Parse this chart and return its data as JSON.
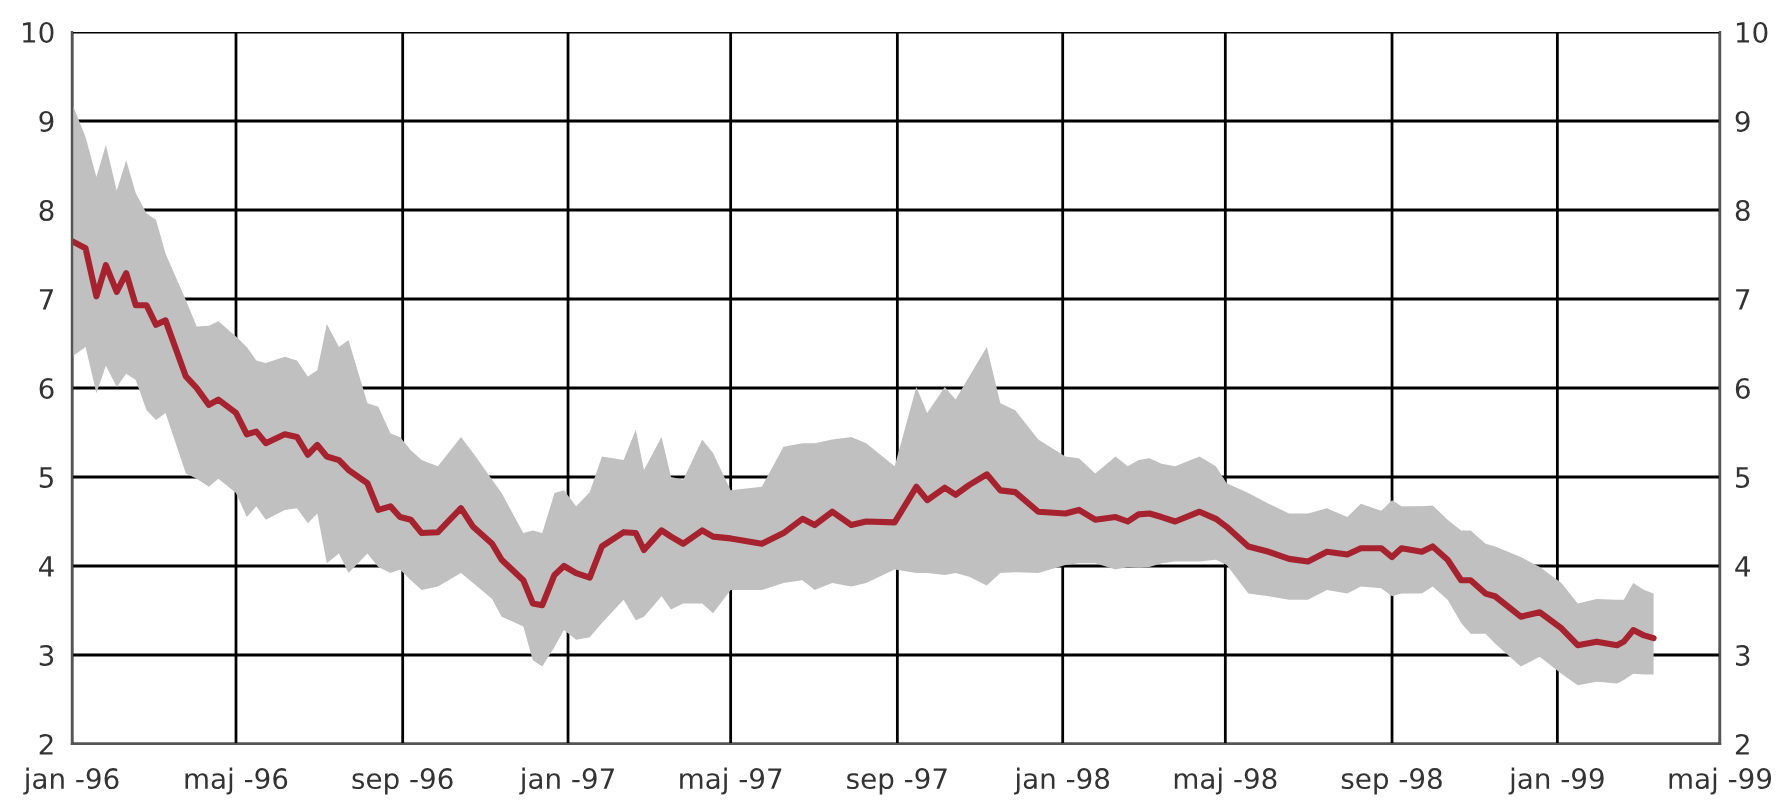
{
  "chart_data": {
    "type": "line",
    "x": [
      "1996-01-01",
      "1996-01-11",
      "1996-01-19",
      "1996-01-26",
      "1996-02-03",
      "1996-02-10",
      "1996-02-17",
      "1996-02-25",
      "1996-03-03",
      "1996-03-10",
      "1996-03-25",
      "1996-04-02",
      "1996-04-11",
      "1996-04-18",
      "1996-05-01",
      "1996-05-09",
      "1996-05-16",
      "1996-05-23",
      "1996-06-06",
      "1996-06-15",
      "1996-06-23",
      "1996-06-30",
      "1996-07-07",
      "1996-07-16",
      "1996-07-23",
      "1996-08-06",
      "1996-08-14",
      "1996-08-23",
      "1996-08-30",
      "1996-09-07",
      "1996-09-15",
      "1996-09-27",
      "1996-10-14",
      "1996-10-23",
      "1996-11-06",
      "1996-11-13",
      "1996-11-29",
      "1996-12-06",
      "1996-12-13",
      "1996-12-22",
      "1996-12-29",
      "1997-01-07",
      "1997-01-17",
      "1997-01-26",
      "1997-02-11",
      "1997-02-20",
      "1997-02-26",
      "1997-03-11",
      "1997-03-18",
      "1997-03-27",
      "1997-04-10",
      "1997-04-18",
      "1997-05-01",
      "1997-05-24",
      "1997-06-09",
      "1997-06-23",
      "1997-07-02",
      "1997-07-15",
      "1997-07-29",
      "1997-08-09",
      "1997-08-30",
      "1997-09-15",
      "1997-09-23",
      "1997-10-06",
      "1997-10-14",
      "1997-10-24",
      "1997-11-06",
      "1997-11-16",
      "1997-11-27",
      "1997-12-14",
      "1998-01-03",
      "1998-01-13",
      "1998-01-25",
      "1998-02-09",
      "1998-02-18",
      "1998-02-26",
      "1998-03-06",
      "1998-03-15",
      "1998-03-25",
      "1998-04-12",
      "1998-04-24",
      "1998-05-02",
      "1998-05-18",
      "1998-06-02",
      "1998-06-17",
      "1998-07-01",
      "1998-07-15",
      "1998-07-30",
      "1998-08-09",
      "1998-08-24",
      "1998-09-01",
      "1998-09-08",
      "1998-09-23",
      "1998-10-01",
      "1998-10-12",
      "1998-10-22",
      "1998-10-29",
      "1998-11-09",
      "1998-11-16",
      "1998-12-05",
      "1998-12-19",
      "1999-01-04",
      "1999-01-16",
      "1999-01-30",
      "1999-02-14",
      "1999-02-19",
      "1999-02-26",
      "1999-03-06",
      "1999-03-13"
    ],
    "series": [
      {
        "color": "#a6222e",
        "values": [
          7.65,
          7.57,
          7.03,
          7.38,
          7.08,
          7.29,
          6.93,
          6.93,
          6.71,
          6.76,
          6.13,
          6.0,
          5.81,
          5.87,
          5.72,
          5.48,
          5.51,
          5.38,
          5.48,
          5.45,
          5.25,
          5.36,
          5.23,
          5.19,
          5.08,
          4.93,
          4.63,
          4.67,
          4.55,
          4.52,
          4.37,
          4.38,
          4.65,
          4.44,
          4.25,
          4.07,
          3.84,
          3.58,
          3.56,
          3.9,
          4.0,
          3.92,
          3.87,
          4.22,
          4.38,
          4.37,
          4.18,
          4.4,
          4.33,
          4.25,
          4.4,
          4.33,
          4.31,
          4.25,
          4.37,
          4.53,
          4.46,
          4.61,
          4.46,
          4.5,
          4.49,
          4.89,
          4.74,
          4.88,
          4.8,
          4.91,
          5.03,
          4.85,
          4.83,
          4.61,
          4.59,
          4.63,
          4.52,
          4.55,
          4.5,
          4.58,
          4.59,
          4.55,
          4.5,
          4.61,
          4.53,
          4.44,
          4.22,
          4.16,
          4.08,
          4.05,
          4.16,
          4.13,
          4.2,
          4.2,
          4.1,
          4.2,
          4.16,
          4.22,
          4.07,
          3.84,
          3.84,
          3.69,
          3.66,
          3.43,
          3.48,
          3.3,
          3.11,
          3.15,
          3.11,
          3.15,
          3.28,
          3.22,
          3.19
        ],
        "upper": [
          9.2,
          8.82,
          8.37,
          8.73,
          8.22,
          8.56,
          8.19,
          7.96,
          7.89,
          7.51,
          6.99,
          6.69,
          6.7,
          6.75,
          6.58,
          6.46,
          6.31,
          6.28,
          6.35,
          6.31,
          6.13,
          6.2,
          6.72,
          6.46,
          6.54,
          5.83,
          5.79,
          5.49,
          5.45,
          5.3,
          5.19,
          5.12,
          5.45,
          5.27,
          4.97,
          4.82,
          4.37,
          4.4,
          4.37,
          4.82,
          4.85,
          4.67,
          4.83,
          5.23,
          5.19,
          5.53,
          5.08,
          5.45,
          5.0,
          4.97,
          5.42,
          5.27,
          4.85,
          4.89,
          5.34,
          5.38,
          5.38,
          5.42,
          5.45,
          5.38,
          5.12,
          6.01,
          5.72,
          6.01,
          5.87,
          6.13,
          6.46,
          5.83,
          5.75,
          5.42,
          5.23,
          5.21,
          5.04,
          5.23,
          5.12,
          5.19,
          5.21,
          5.15,
          5.12,
          5.23,
          5.12,
          4.93,
          4.82,
          4.7,
          4.59,
          4.59,
          4.65,
          4.55,
          4.7,
          4.62,
          4.74,
          4.67,
          4.67,
          4.68,
          4.52,
          4.4,
          4.4,
          4.25,
          4.22,
          4.1,
          3.99,
          3.81,
          3.58,
          3.63,
          3.62,
          3.62,
          3.81,
          3.73,
          3.69
        ],
        "lower": [
          6.35,
          6.46,
          5.94,
          6.25,
          6.01,
          6.16,
          6.09,
          5.75,
          5.64,
          5.72,
          5.04,
          4.98,
          4.89,
          4.98,
          4.82,
          4.55,
          4.67,
          4.52,
          4.63,
          4.65,
          4.48,
          4.59,
          4.03,
          4.14,
          3.92,
          4.14,
          3.99,
          3.92,
          3.96,
          3.84,
          3.73,
          3.77,
          3.92,
          3.81,
          3.63,
          3.43,
          3.32,
          2.94,
          2.87,
          3.09,
          3.28,
          3.17,
          3.2,
          3.36,
          3.62,
          3.39,
          3.43,
          3.66,
          3.51,
          3.58,
          3.58,
          3.47,
          3.73,
          3.73,
          3.81,
          3.84,
          3.73,
          3.81,
          3.77,
          3.81,
          3.96,
          3.92,
          3.92,
          3.9,
          3.92,
          3.88,
          3.78,
          3.92,
          3.93,
          3.92,
          4.01,
          4.03,
          4.03,
          3.96,
          3.99,
          3.98,
          3.99,
          4.03,
          4.05,
          4.05,
          4.07,
          4.01,
          3.69,
          3.66,
          3.62,
          3.62,
          3.73,
          3.69,
          3.77,
          3.75,
          3.66,
          3.69,
          3.69,
          3.77,
          3.62,
          3.36,
          3.24,
          3.24,
          3.13,
          2.87,
          2.98,
          2.79,
          2.66,
          2.7,
          2.68,
          2.72,
          2.79,
          2.78,
          2.78
        ]
      }
    ],
    "xlim": [
      "1996-01-01",
      "1999-05-01"
    ],
    "xticks": [
      {
        "value": "1996-01-01",
        "label": "jan -96"
      },
      {
        "value": "1996-05-01",
        "label": "maj -96"
      },
      {
        "value": "1996-09-01",
        "label": "sep -96"
      },
      {
        "value": "1997-01-01",
        "label": "jan -97"
      },
      {
        "value": "1997-05-01",
        "label": "maj -97"
      },
      {
        "value": "1997-09-01",
        "label": "sep -97"
      },
      {
        "value": "1998-01-01",
        "label": "jan -98"
      },
      {
        "value": "1998-05-01",
        "label": "maj -98"
      },
      {
        "value": "1998-09-01",
        "label": "sep -98"
      },
      {
        "value": "1999-01-01",
        "label": "jan -99"
      },
      {
        "value": "1999-05-01",
        "label": "maj -99"
      }
    ],
    "ylim": [
      2,
      10
    ],
    "yticks": [
      2,
      3,
      4,
      5,
      6,
      7,
      8,
      9,
      10
    ],
    "y2lim": [
      2,
      10
    ],
    "y2ticks": [
      2,
      3,
      4,
      5,
      6,
      7,
      8,
      9,
      10
    ],
    "grid": true,
    "marker": "none",
    "line_style": "solid"
  }
}
